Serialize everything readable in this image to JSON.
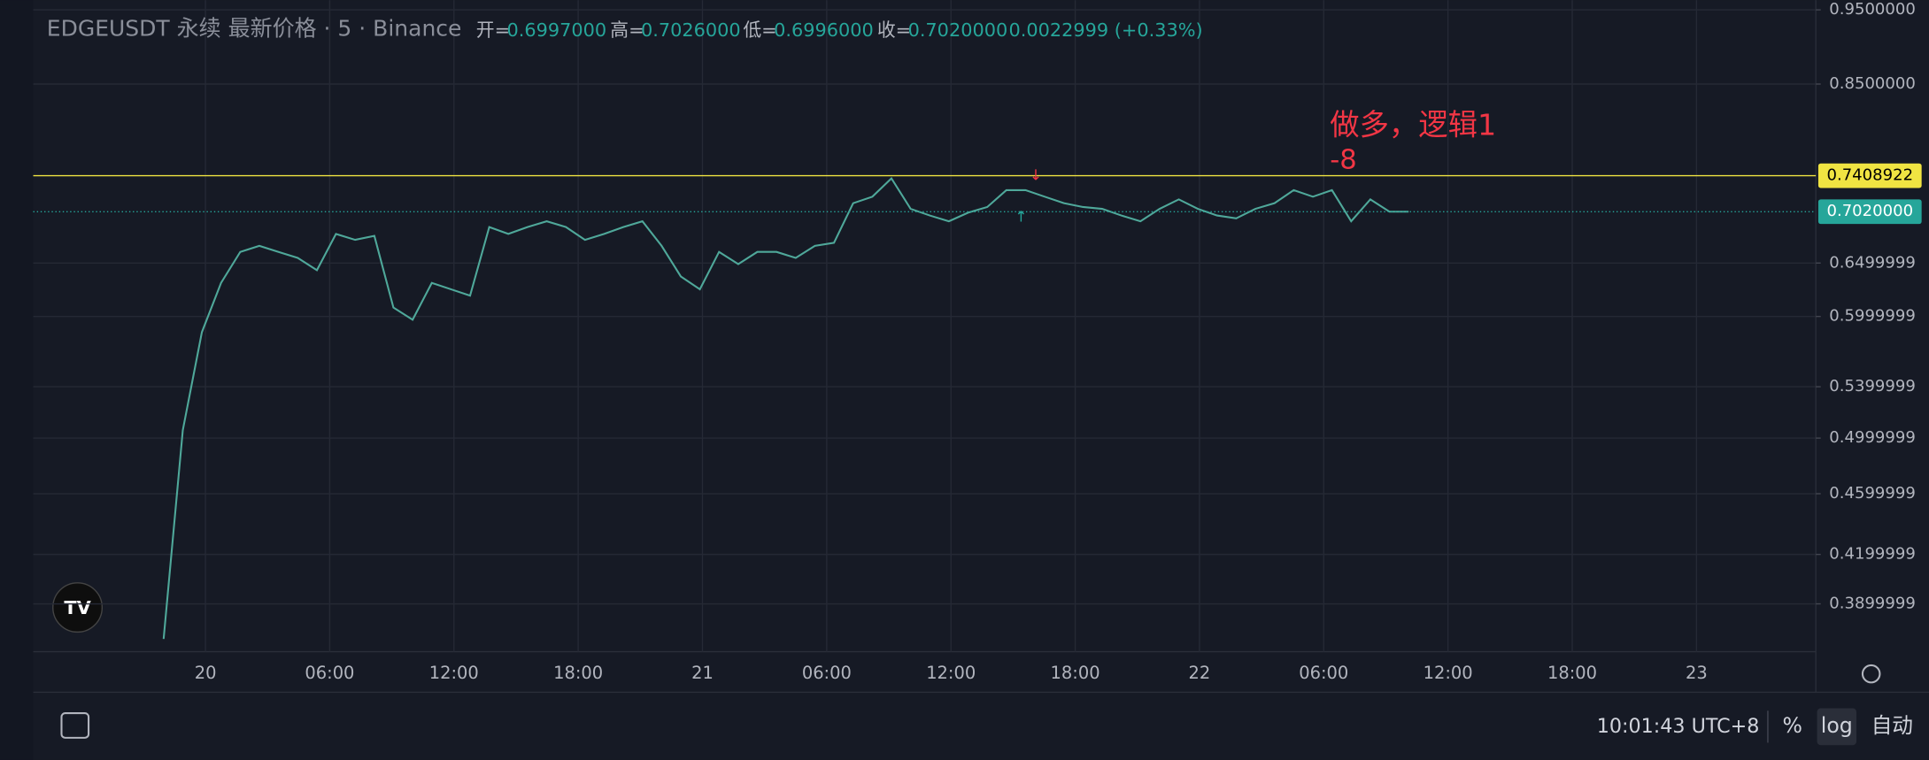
{
  "header": {
    "title": "EDGEUSDT 永续 最新价格 · 5 · Binance",
    "ohlc": [
      {
        "label": "开=",
        "value": "0.6997000"
      },
      {
        "label": "高=",
        "value": "0.7026000"
      },
      {
        "label": "低=",
        "value": "0.6996000"
      },
      {
        "label": "收=",
        "value": "0.7020000"
      }
    ],
    "change": "0.0022999 (+0.33%)"
  },
  "chart_data": {
    "type": "line",
    "color": "#4fa89a",
    "log_scale": true,
    "grid": true,
    "values": [
      0.37,
      0.506,
      0.586,
      0.631,
      0.661,
      0.667,
      0.661,
      0.655,
      0.643,
      0.679,
      0.673,
      0.677,
      0.608,
      0.597,
      0.631,
      0.625,
      0.619,
      0.686,
      0.679,
      0.686,
      0.692,
      0.686,
      0.673,
      0.679,
      0.686,
      0.692,
      0.667,
      0.637,
      0.625,
      0.661,
      0.649,
      0.661,
      0.661,
      0.655,
      0.667,
      0.67,
      0.711,
      0.718,
      0.738,
      0.705,
      0.698,
      0.692,
      0.701,
      0.707,
      0.725,
      0.725,
      0.718,
      0.711,
      0.707,
      0.705,
      0.698,
      0.692,
      0.705,
      0.715,
      0.705,
      0.698,
      0.695,
      0.705,
      0.711,
      0.725,
      0.718,
      0.725,
      0.692,
      0.715,
      0.702,
      0.702
    ],
    "ylim": [
      0.363,
      0.964
    ],
    "yticks": [
      {
        "value": 0.95,
        "label": "0.9500000"
      },
      {
        "value": 0.85,
        "label": "0.8500000"
      },
      0.6499999,
      0.5999999,
      0.5399999,
      0.4999999,
      0.4599999,
      0.4199999,
      0.3899999
    ],
    "time_labels": [
      "20",
      "06:00",
      "12:00",
      "18:00",
      "21",
      "06:00",
      "12:00",
      "18:00",
      "22",
      "06:00",
      "12:00",
      "18:00",
      "23"
    ],
    "price_lines": [
      {
        "value": 0.7408922,
        "color": "#f0e442"
      },
      {
        "value": 0.702,
        "label": "0.7020000",
        "color": "#26a69a"
      }
    ],
    "annotation": {
      "text": "做多，逻辑1",
      "subtext": "-8",
      "color": "#f23645"
    }
  },
  "footer": {
    "clock": "10:01:43 UTC+8",
    "percent": "%",
    "log": "log",
    "auto": "自动"
  }
}
